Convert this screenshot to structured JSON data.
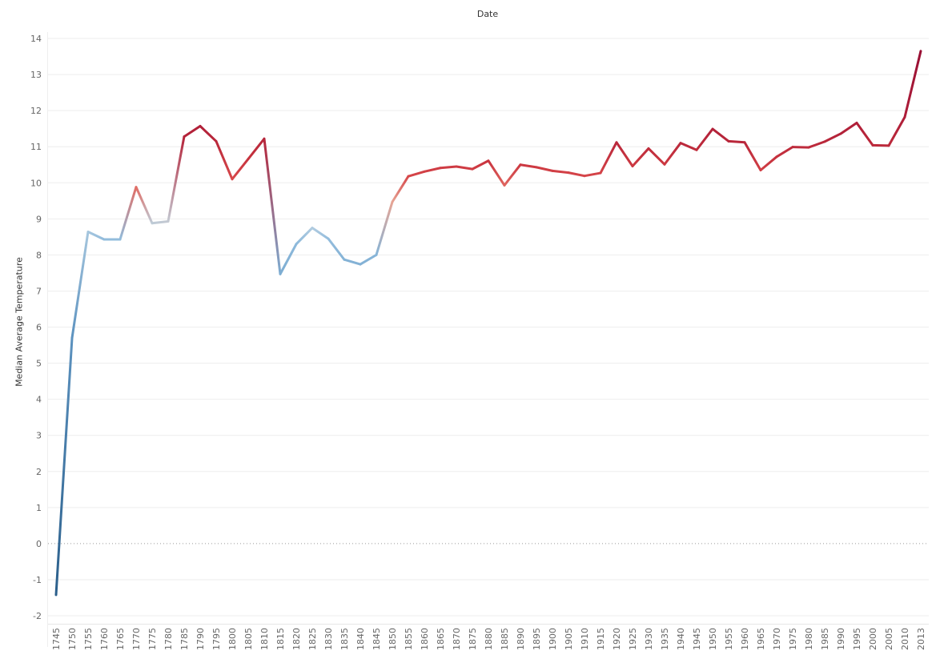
{
  "chart_data": {
    "type": "line",
    "title": "Date",
    "xlabel": "",
    "ylabel": "Median Average Temperature",
    "ylim": [
      -2,
      14
    ],
    "y_ticks": [
      -2,
      -1,
      0,
      1,
      2,
      3,
      4,
      5,
      6,
      7,
      8,
      9,
      10,
      11,
      12,
      13,
      14
    ],
    "grid": true,
    "zero_line": "dotted",
    "color_scale": "diverging blue-to-red by temperature",
    "categories": [
      "1745",
      "1750",
      "1755",
      "1760",
      "1765",
      "1770",
      "1775",
      "1780",
      "1785",
      "1790",
      "1795",
      "1800",
      "1805",
      "1810",
      "1815",
      "1820",
      "1825",
      "1830",
      "1835",
      "1840",
      "1845",
      "1850",
      "1855",
      "1860",
      "1865",
      "1870",
      "1875",
      "1880",
      "1885",
      "1890",
      "1895",
      "1900",
      "1905",
      "1910",
      "1915",
      "1920",
      "1925",
      "1930",
      "1935",
      "1940",
      "1945",
      "1950",
      "1955",
      "1960",
      "1965",
      "1970",
      "1975",
      "1980",
      "1985",
      "1990",
      "1995",
      "2000",
      "2005",
      "2010",
      "2013"
    ],
    "values": [
      -1.42,
      5.7,
      8.64,
      8.43,
      8.43,
      9.88,
      8.88,
      8.93,
      11.28,
      11.57,
      11.15,
      10.1,
      10.66,
      11.22,
      7.47,
      8.3,
      8.75,
      8.45,
      7.87,
      7.74,
      8.0,
      9.47,
      10.18,
      10.31,
      10.41,
      10.45,
      10.38,
      10.61,
      9.93,
      10.5,
      10.43,
      10.33,
      10.28,
      10.19,
      10.27,
      11.12,
      10.46,
      10.95,
      10.51,
      11.1,
      10.91,
      11.49,
      11.15,
      11.12,
      10.35,
      10.72,
      10.99,
      10.98,
      11.14,
      11.36,
      11.66,
      11.04,
      11.03,
      11.82,
      13.65
    ]
  }
}
